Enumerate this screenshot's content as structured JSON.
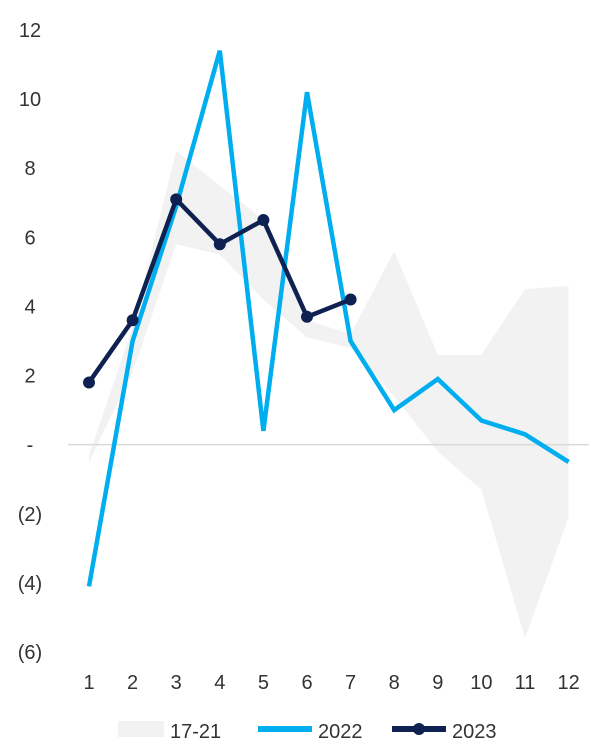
{
  "chart_data": {
    "type": "line",
    "categories": [
      "1",
      "2",
      "3",
      "4",
      "5",
      "6",
      "7",
      "8",
      "9",
      "10",
      "11",
      "12"
    ],
    "ylim": [
      -6,
      12
    ],
    "y_ticks": [
      {
        "value": 12,
        "label": "12"
      },
      {
        "value": 10,
        "label": "10"
      },
      {
        "value": 8,
        "label": "8"
      },
      {
        "value": 6,
        "label": "6"
      },
      {
        "value": 4,
        "label": "4"
      },
      {
        "value": 2,
        "label": "2"
      },
      {
        "value": 0,
        "label": "-"
      },
      {
        "value": -2,
        "label": "(2)"
      },
      {
        "value": -4,
        "label": "(4)"
      },
      {
        "value": -6,
        "label": "(6)"
      }
    ],
    "band": {
      "name": "17-21",
      "color": "#f2f2f2",
      "upper": [
        -0.3,
        3.4,
        8.5,
        7.5,
        6.5,
        3.6,
        3.2,
        5.6,
        2.6,
        2.6,
        4.5,
        4.6
      ],
      "lower": [
        -0.5,
        2.1,
        5.8,
        5.5,
        4.2,
        3.1,
        2.8,
        1.4,
        -0.2,
        -1.3,
        -5.6,
        -2.1
      ]
    },
    "series": [
      {
        "name": "2022",
        "color": "#00aeef",
        "marker": false,
        "values": [
          -4.1,
          3.0,
          6.9,
          11.4,
          0.4,
          10.2,
          3.0,
          1.0,
          1.9,
          0.7,
          0.3,
          -0.5
        ]
      },
      {
        "name": "2023",
        "color": "#0f2150",
        "marker": true,
        "values": [
          1.8,
          3.6,
          7.1,
          5.8,
          6.5,
          3.7,
          4.2,
          null,
          null,
          null,
          null,
          null
        ]
      }
    ],
    "legend": {
      "position": "bottom"
    },
    "grid": false
  }
}
